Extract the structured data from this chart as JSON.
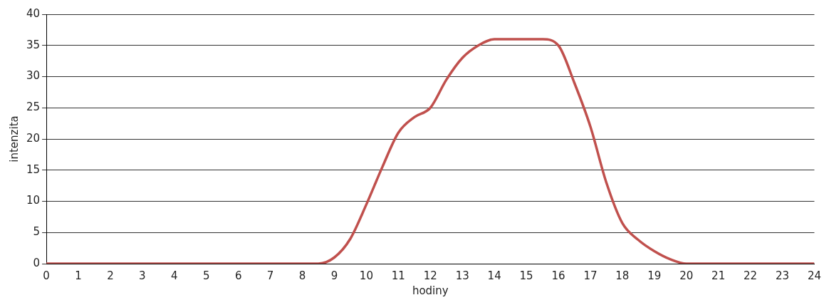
{
  "chart_data": {
    "type": "line",
    "xlabel": "hodiny",
    "ylabel": "intenzita",
    "x": [
      0,
      1,
      2,
      3,
      4,
      5,
      6,
      7,
      8,
      8.5,
      9,
      9.5,
      10,
      10.5,
      11,
      11.5,
      12,
      12.5,
      13,
      13.5,
      14,
      14.5,
      15,
      15.5,
      16,
      16.5,
      17,
      17.5,
      18,
      18.5,
      19,
      19.5,
      20,
      21,
      22,
      23,
      24
    ],
    "series": [
      {
        "color": "#c0504d",
        "values": [
          0,
          0,
          0,
          0,
          0,
          0,
          0,
          0,
          0,
          0,
          1,
          4,
          9.5,
          15.5,
          21,
          23.5,
          25,
          29.5,
          33,
          35,
          36,
          36,
          36,
          36,
          35,
          29,
          22,
          13,
          6.5,
          3.8,
          2,
          0.7,
          0,
          0,
          0,
          0,
          0
        ]
      }
    ],
    "xlim": [
      0,
      24
    ],
    "xticks": [
      0,
      1,
      2,
      3,
      4,
      5,
      6,
      7,
      8,
      9,
      10,
      11,
      12,
      13,
      14,
      15,
      16,
      17,
      18,
      19,
      20,
      21,
      22,
      23,
      24
    ],
    "ylim": [
      0,
      40
    ],
    "yticks": [
      0,
      5,
      10,
      15,
      20,
      25,
      30,
      35,
      40
    ],
    "grid": "y",
    "legend": false,
    "marker": "none",
    "line_style": "solid"
  }
}
